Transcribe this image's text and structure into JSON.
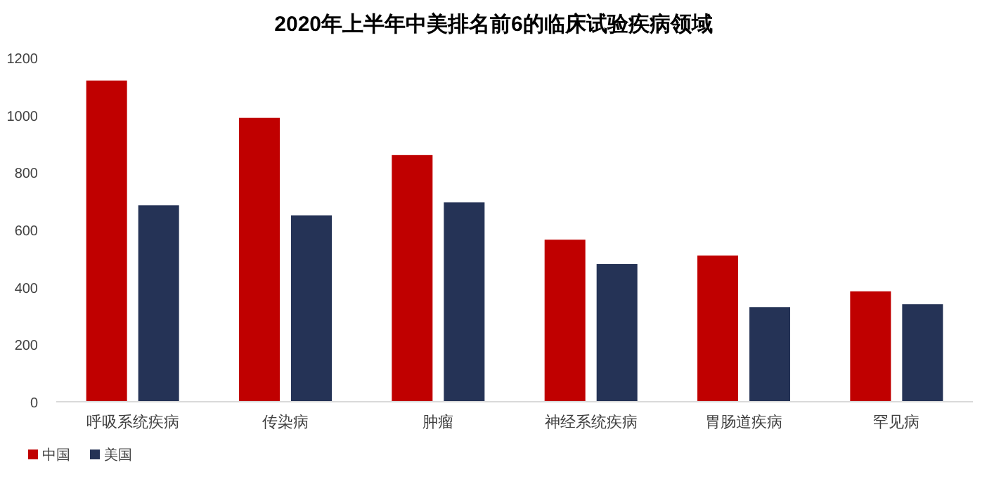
{
  "chart_data": {
    "type": "bar",
    "title": "2020年上半年中美排名前6的临床试验疾病领域",
    "categories": [
      "呼吸系统疾病",
      "传染病",
      "肿瘤",
      "神经系统疾病",
      "胃肠道疾病",
      "罕见病"
    ],
    "series": [
      {
        "name": "中国",
        "color": "#c00000",
        "values": [
          1120,
          990,
          860,
          565,
          510,
          385
        ]
      },
      {
        "name": "美国",
        "color": "#253356",
        "values": [
          685,
          650,
          695,
          480,
          330,
          340
        ]
      }
    ],
    "ylim": [
      0,
      1200
    ],
    "yticks": [
      0,
      200,
      400,
      600,
      800,
      1000,
      1200
    ],
    "grid": false,
    "legend": "bottom"
  }
}
